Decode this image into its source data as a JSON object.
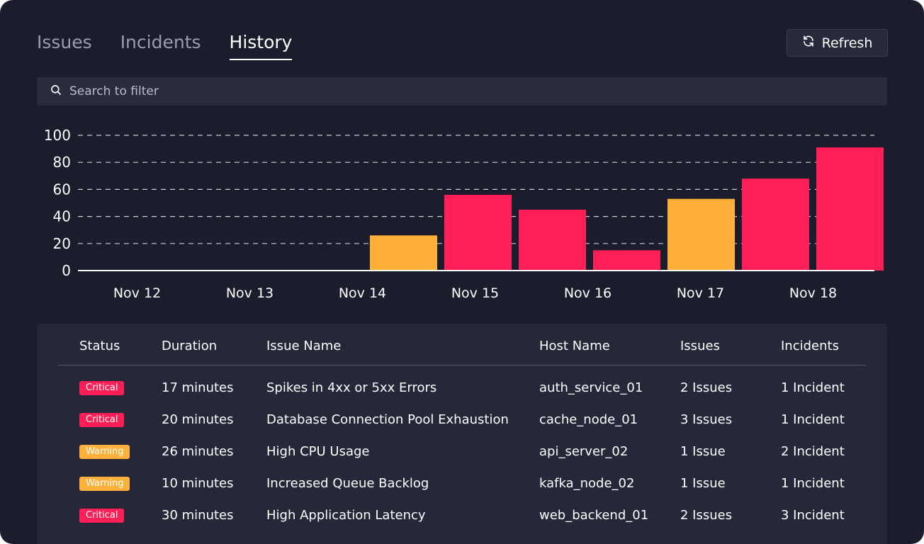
{
  "tabs": [
    {
      "label": "Issues",
      "active": false
    },
    {
      "label": "Incidents",
      "active": false
    },
    {
      "label": "History",
      "active": true
    }
  ],
  "refresh_label": "Refresh",
  "search": {
    "placeholder": "Search to filter"
  },
  "colors": {
    "critical": "#ff1e56",
    "warning": "#ffb03a",
    "background": "#1c1d2c"
  },
  "chart_data": {
    "type": "bar",
    "categories": [
      "Nov 12",
      "Nov 13",
      "Nov 14",
      "Nov 15",
      "Nov 16",
      "Nov 17",
      "Nov 18"
    ],
    "ylim": [
      0,
      100
    ],
    "yticks": [
      0,
      20,
      40,
      60,
      80,
      100
    ],
    "grid": true,
    "bars": [
      {
        "category": "Nov 14",
        "value": 26,
        "status": "warning"
      },
      {
        "category": "Nov 15",
        "value": 56,
        "status": "critical"
      },
      {
        "category": "Nov 16",
        "value": 45,
        "status": "critical"
      },
      {
        "category": "Nov 16",
        "value": 15,
        "status": "critical"
      },
      {
        "category": "Nov 17",
        "value": 53,
        "status": "warning"
      },
      {
        "category": "Nov 18",
        "value": 68,
        "status": "critical"
      },
      {
        "category": "Nov 18",
        "value": 91,
        "status": "critical"
      }
    ]
  },
  "table": {
    "headers": [
      "Status",
      "Duration",
      "Issue Name",
      "Host Name",
      "Issues",
      "Incidents"
    ],
    "rows": [
      {
        "status": "Critical",
        "status_type": "critical",
        "duration": "17 minutes",
        "issue_name": "Spikes in 4xx or 5xx Errors",
        "host": "auth_service_01",
        "issues": "2 Issues",
        "incidents": "1 Incident"
      },
      {
        "status": "Critical",
        "status_type": "critical",
        "duration": "20 minutes",
        "issue_name": "Database Connection Pool Exhaustion",
        "host": "cache_node_01",
        "issues": "3 Issues",
        "incidents": "1 Incident"
      },
      {
        "status": "Warning",
        "status_type": "warning",
        "duration": "26 minutes",
        "issue_name": "High CPU Usage",
        "host": "api_server_02",
        "issues": "1 Issue",
        "incidents": "2 Incident"
      },
      {
        "status": "Warning",
        "status_type": "warning",
        "duration": "10 minutes",
        "issue_name": "Increased Queue Backlog",
        "host": "kafka_node_02",
        "issues": "1 Issue",
        "incidents": "1 Incident"
      },
      {
        "status": "Critical",
        "status_type": "critical",
        "duration": "30 minutes",
        "issue_name": "High Application Latency",
        "host": "web_backend_01",
        "issues": "2 Issues",
        "incidents": "3 Incident"
      }
    ]
  }
}
